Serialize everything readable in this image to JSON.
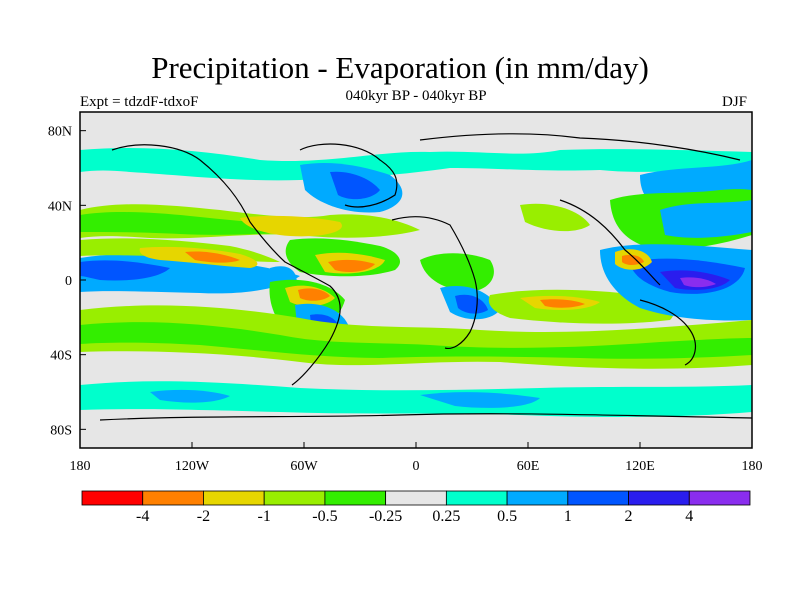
{
  "title": "Precipitation - Evaporation (in mm/day)",
  "subtitle": "040kyr BP - 040kyr BP",
  "experiment_label": "Expt = tdzdF-tdxoF",
  "season_label": "DJF",
  "map": {
    "lon_range": [
      -180,
      180
    ],
    "lat_range": [
      -90,
      90
    ],
    "background_color": "#e6e6e6",
    "x_ticks": [
      {
        "value": -180,
        "label": "180"
      },
      {
        "value": -120,
        "label": "120W"
      },
      {
        "value": -60,
        "label": "60W"
      },
      {
        "value": 0,
        "label": "0"
      },
      {
        "value": 60,
        "label": "60E"
      },
      {
        "value": 120,
        "label": "120E"
      },
      {
        "value": 180,
        "label": "180"
      }
    ],
    "y_ticks": [
      {
        "value": 80,
        "label": "80N"
      },
      {
        "value": 40,
        "label": "40N"
      },
      {
        "value": 0,
        "label": "0"
      },
      {
        "value": -40,
        "label": "40S"
      },
      {
        "value": -80,
        "label": "80S"
      }
    ]
  },
  "colorbar": {
    "colors": [
      "#ff0000",
      "#ff8000",
      "#e6d600",
      "#99ee00",
      "#33ee00",
      "#e6e6e6",
      "#00ffcc",
      "#00aaff",
      "#0055ff",
      "#2a1dee",
      "#8a2dee"
    ],
    "labels": [
      "-4",
      "-2",
      "-1",
      "-0.5",
      "-0.25",
      "0.25",
      "0.5",
      "1",
      "2",
      "4"
    ]
  }
}
